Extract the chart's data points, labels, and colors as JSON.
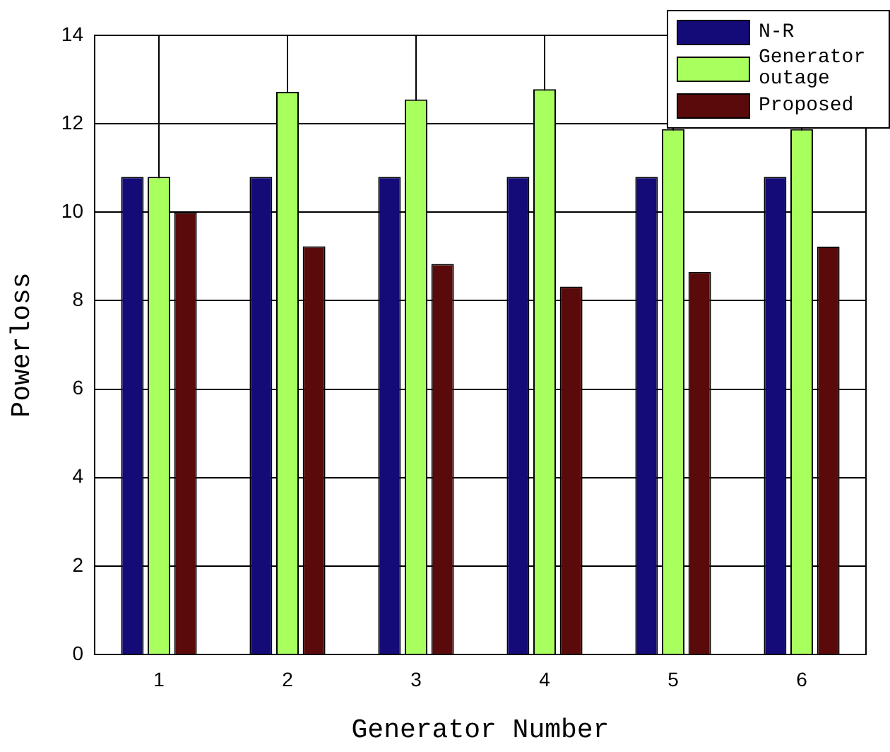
{
  "chart_data": {
    "type": "bar",
    "xlabel": "Generator Number",
    "ylabel": "Powerloss",
    "categories": [
      "1",
      "2",
      "3",
      "4",
      "5",
      "6"
    ],
    "series": [
      {
        "name": "N-R",
        "color": "#140a78",
        "values": [
          10.8,
          10.8,
          10.8,
          10.8,
          10.8,
          10.8
        ]
      },
      {
        "name": "Generator outage",
        "color": "#a8ff5e",
        "values": [
          10.8,
          12.72,
          12.55,
          12.78,
          11.88,
          11.88
        ]
      },
      {
        "name": "Proposed",
        "color": "#5a0a0a",
        "values": [
          10.0,
          9.23,
          8.83,
          8.32,
          8.65,
          9.22
        ]
      }
    ],
    "ylim": [
      0,
      14
    ],
    "yticks": [
      0,
      2,
      4,
      6,
      8,
      10,
      12,
      14
    ],
    "grid": true,
    "legend": "top right"
  }
}
